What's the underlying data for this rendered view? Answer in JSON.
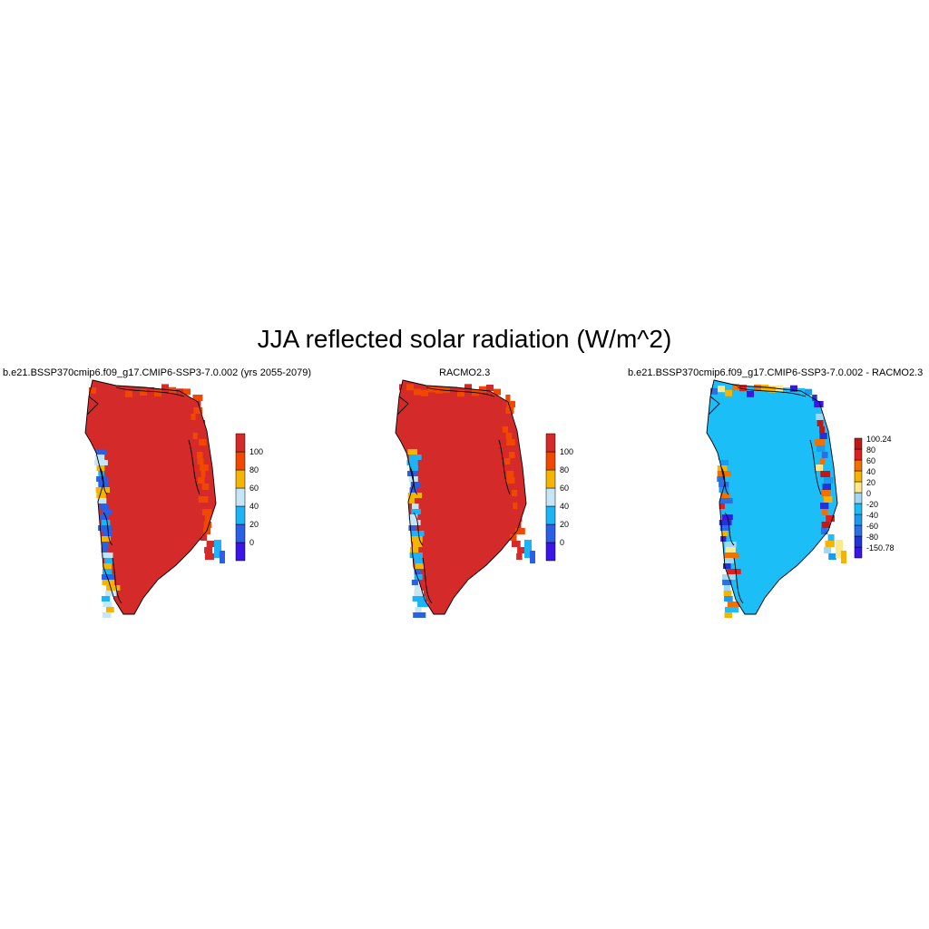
{
  "figure": {
    "title": "JJA reflected solar radiation (W/m^2)"
  },
  "panels": [
    {
      "title": "b.e21.BSSP370cmip6.f09_g17.CMIP6-SSP3-7.0.002 (yrs 2055-2079)",
      "dominant_fill": "#d42a2a",
      "colorbar": {
        "colors": [
          "#3b14e8",
          "#2b5fe6",
          "#1cb4f7",
          "#c6e6f7",
          "#f5b400",
          "#f04800",
          "#d42a2a"
        ],
        "labels": [
          "0",
          "20",
          "40",
          "60",
          "80",
          "100"
        ]
      }
    },
    {
      "title": "RACMO2.3",
      "dominant_fill": "#d42a2a",
      "colorbar": {
        "colors": [
          "#3b14e8",
          "#2b5fe6",
          "#1cb4f7",
          "#c6e6f7",
          "#f5b400",
          "#f04800",
          "#d42a2a"
        ],
        "labels": [
          "0",
          "20",
          "40",
          "60",
          "80",
          "100"
        ]
      }
    },
    {
      "title": "b.e21.BSSP370cmip6.f09_g17.CMIP6-SSP3-7.0.002 - RACMO2.3",
      "dominant_fill": "#1cbef8",
      "colorbar": {
        "colors": [
          "#3b14e8",
          "#2333d6",
          "#2b6fe6",
          "#1a9bf0",
          "#1cbef8",
          "#9fd8f0",
          "#fde98a",
          "#f5b400",
          "#f07000",
          "#e02020",
          "#c01818"
        ],
        "labels": [
          "100.24",
          "80",
          "60",
          "40",
          "20",
          "0",
          "-20",
          "-40",
          "-60",
          "-80",
          "-150.78"
        ]
      }
    }
  ]
}
